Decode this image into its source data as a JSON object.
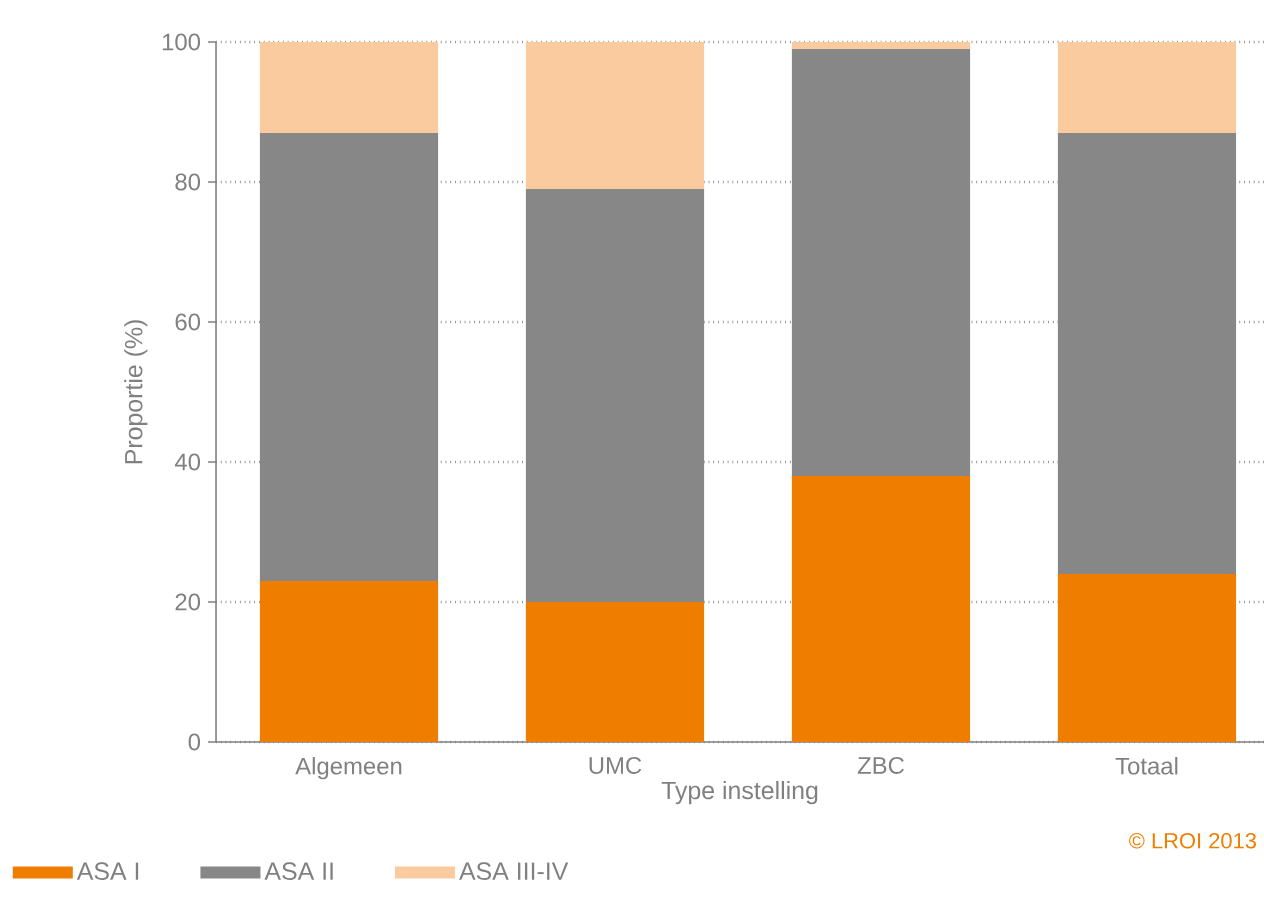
{
  "chart_data": {
    "type": "bar",
    "stacked": true,
    "categories": [
      "Algemeen",
      "UMC",
      "ZBC",
      "Totaal"
    ],
    "xlabel": "Type instelling",
    "ylabel": "Proportie (%)",
    "series": [
      {
        "name": "ASA I",
        "color": "#ef7d00",
        "values": [
          23,
          20,
          38,
          24
        ]
      },
      {
        "name": "ASA II",
        "color": "#878787",
        "values": [
          64,
          59,
          61,
          63
        ]
      },
      {
        "name": "ASA III-IV",
        "color": "#f9cb9f",
        "values": [
          13,
          21,
          1,
          13
        ]
      }
    ],
    "ylim": [
      0,
      100
    ],
    "yticks": [
      0,
      20,
      40,
      60,
      80,
      100
    ],
    "grid": "y",
    "legend": "bottom left",
    "annotations": [
      "© LROI 2013"
    ]
  }
}
